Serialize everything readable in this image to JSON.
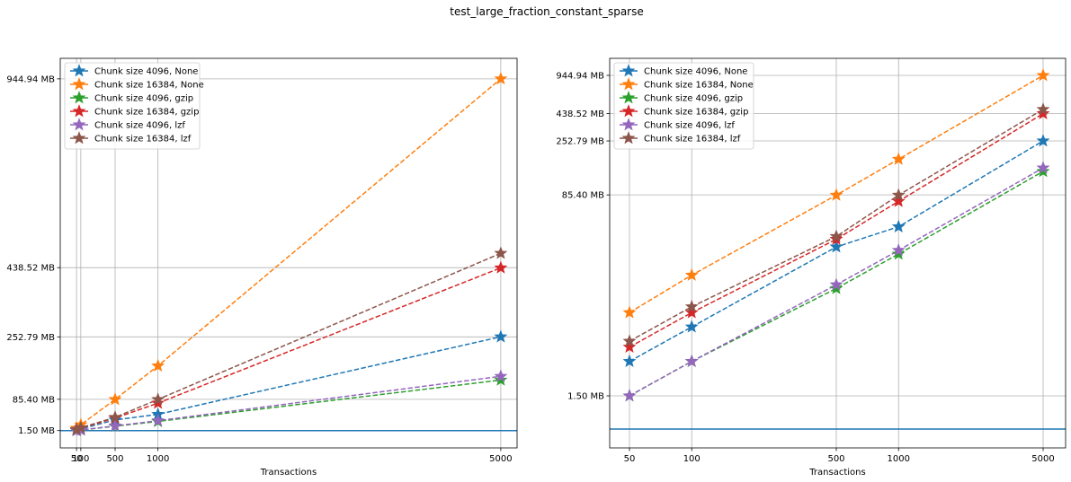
{
  "suptitle": "test_large_fraction_constant_sparse",
  "chart_data": [
    {
      "type": "line",
      "xscale": "linear",
      "yscale": "linear",
      "xlabel": "Transactions",
      "x": [
        50,
        100,
        500,
        1000,
        5000
      ],
      "xticks": [
        50,
        100,
        500,
        1000,
        5000
      ],
      "xtick_labels": [
        "50",
        "100",
        "500",
        "1000",
        "5000"
      ],
      "yticks": [
        1.5,
        85.4,
        252.79,
        438.52,
        944.94
      ],
      "ytick_labels": [
        "1.50 MB",
        "85.40 MB",
        "252.79 MB",
        "438.52 MB",
        "944.94 MB"
      ],
      "xlim": [
        -140,
        5190
      ],
      "ylim": [
        -45,
        1000
      ],
      "hline": 1.5,
      "grid": true,
      "legend_position": "upper left",
      "series": [
        {
          "name": "Chunk size 4096, None",
          "color": "#1f77b4",
          "values": [
            3,
            6,
            30,
            45,
            253
          ]
        },
        {
          "name": "Chunk size 16384, None",
          "color": "#ff7f0e",
          "values": [
            8,
            17,
            85,
            175,
            945
          ]
        },
        {
          "name": "Chunk size 4096, gzip",
          "color": "#2ca02c",
          "values": [
            1.5,
            3,
            13,
            26,
            137
          ]
        },
        {
          "name": "Chunk size 16384, gzip",
          "color": "#d62728",
          "values": [
            4,
            8,
            35,
            75,
            438
          ]
        },
        {
          "name": "Chunk size 4096, lzf",
          "color": "#9467bd",
          "values": [
            1.5,
            3,
            14,
            28,
            147
          ]
        },
        {
          "name": "Chunk size 16384, lzf",
          "color": "#8c564b",
          "values": [
            4.5,
            9,
            37,
            85,
            477
          ]
        }
      ]
    },
    {
      "type": "line",
      "xscale": "log",
      "yscale": "log",
      "xlabel": "Transactions",
      "x": [
        50,
        100,
        500,
        1000,
        5000
      ],
      "xticks": [
        50,
        100,
        500,
        1000,
        5000
      ],
      "xtick_labels": [
        "50",
        "100",
        "500",
        "1000",
        "5000"
      ],
      "yticks": [
        1.5,
        85.4,
        252.79,
        438.52,
        944.94
      ],
      "ytick_labels": [
        "1.50 MB",
        "85.40 MB",
        "252.79 MB",
        "438.52 MB",
        "944.94 MB"
      ],
      "hline": 1.5,
      "grid": true,
      "legend_position": "upper left",
      "series": [
        {
          "name": "Chunk size 4096, None",
          "color": "#1f77b4",
          "values": [
            3,
            6,
            30,
            45,
            253
          ]
        },
        {
          "name": "Chunk size 16384, None",
          "color": "#ff7f0e",
          "values": [
            8,
            17,
            85,
            175,
            945
          ]
        },
        {
          "name": "Chunk size 4096, gzip",
          "color": "#2ca02c",
          "values": [
            1.5,
            3,
            13,
            26,
            137
          ]
        },
        {
          "name": "Chunk size 16384, gzip",
          "color": "#d62728",
          "values": [
            4,
            8,
            35,
            75,
            438
          ]
        },
        {
          "name": "Chunk size 4096, lzf",
          "color": "#9467bd",
          "values": [
            1.5,
            3,
            14,
            28,
            147
          ]
        },
        {
          "name": "Chunk size 16384, lzf",
          "color": "#8c564b",
          "values": [
            4.5,
            9,
            37,
            85,
            477
          ]
        }
      ]
    }
  ]
}
